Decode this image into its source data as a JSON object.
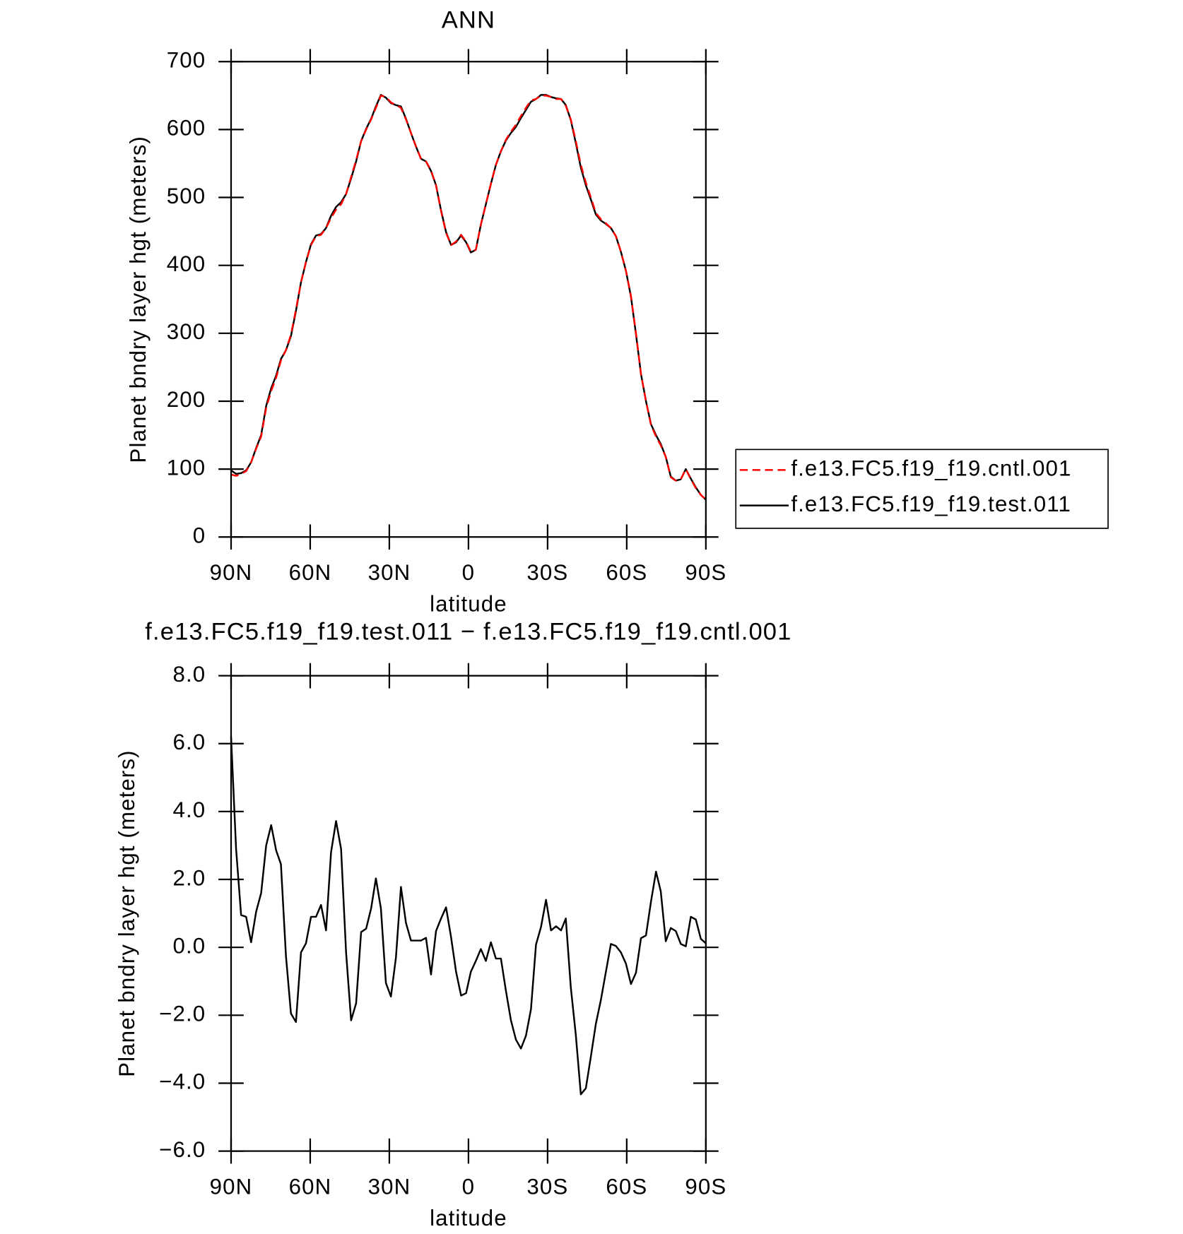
{
  "chart_data": [
    {
      "type": "line",
      "title": "ANN",
      "ylabel": "Planet bndry layer hgt (meters)",
      "xlabel": "latitude",
      "x": [
        90.0,
        88.1,
        86.2,
        84.3,
        82.4,
        80.5,
        78.6,
        76.7,
        74.8,
        72.9,
        71.1,
        69.2,
        67.3,
        65.4,
        63.5,
        61.6,
        59.7,
        57.8,
        55.9,
        54.0,
        52.1,
        50.2,
        48.3,
        46.4,
        44.5,
        42.6,
        40.7,
        38.8,
        36.9,
        35.1,
        33.2,
        31.3,
        29.4,
        27.5,
        25.6,
        23.7,
        21.8,
        19.9,
        18.0,
        16.1,
        14.2,
        12.3,
        10.4,
        8.5,
        6.6,
        4.7,
        2.8,
        0.9,
        -0.9,
        -2.8,
        -4.7,
        -6.6,
        -8.5,
        -10.4,
        -12.3,
        -14.2,
        -16.1,
        -18.0,
        -19.9,
        -21.8,
        -23.7,
        -25.6,
        -27.5,
        -29.4,
        -31.3,
        -33.2,
        -35.1,
        -36.9,
        -38.8,
        -40.7,
        -42.6,
        -44.5,
        -46.4,
        -48.3,
        -50.2,
        -52.1,
        -54.0,
        -55.9,
        -57.8,
        -59.7,
        -61.6,
        -63.5,
        -65.4,
        -67.3,
        -69.2,
        -71.1,
        -72.9,
        -74.8,
        -76.7,
        -78.6,
        -80.5,
        -82.4,
        -84.3,
        -86.2,
        -88.1,
        -90.0
      ],
      "series": [
        {
          "name": "f.e13.FC5.f19_f19.cntl.001",
          "color": "#ff0000",
          "dash": true,
          "values": [
            92,
            90,
            93,
            97,
            110,
            130,
            148,
            190,
            215,
            235,
            260,
            275,
            298,
            335,
            375,
            405,
            430,
            443,
            445,
            455,
            470,
            482,
            490,
            505,
            530,
            555,
            583,
            600,
            615,
            632,
            650,
            648,
            640,
            636,
            632,
            615,
            595,
            575,
            557,
            553,
            540,
            518,
            480,
            448,
            430,
            435,
            445,
            435,
            420,
            423,
            460,
            490,
            520,
            548,
            568,
            585,
            597,
            607,
            620,
            632,
            643,
            645,
            650,
            650,
            648,
            645,
            645,
            635,
            615,
            583,
            548,
            522,
            500,
            477,
            468,
            462,
            455,
            443,
            420,
            392,
            355,
            300,
            240,
            200,
            165,
            148,
            135,
            118,
            88,
            83,
            85,
            100,
            85,
            72,
            62,
            55
          ]
        },
        {
          "name": "f.e13.FC5.f19_f19.test.011",
          "color": "#000000",
          "dash": false,
          "values": [
            98,
            93,
            94,
            98,
            110,
            131,
            150,
            193,
            219,
            238,
            262,
            275,
            296,
            333,
            375,
            405,
            431,
            444,
            446,
            455,
            473,
            486,
            493,
            505,
            528,
            553,
            583,
            601,
            616,
            634,
            651,
            647,
            639,
            636,
            634,
            616,
            595,
            575,
            557,
            553,
            539,
            518,
            481,
            449,
            430,
            434,
            444,
            434,
            419,
            423,
            460,
            490,
            520,
            548,
            568,
            584,
            595,
            604,
            617,
            629,
            641,
            645,
            651,
            651,
            648,
            646,
            645,
            636,
            614,
            580,
            544,
            518,
            497,
            475,
            466,
            461,
            455,
            443,
            420,
            392,
            354,
            299,
            240,
            200,
            166,
            150,
            137,
            118,
            89,
            83,
            85,
            100,
            86,
            73,
            62,
            55
          ]
        }
      ],
      "xlim": [
        90,
        -90
      ],
      "xticks": [
        {
          "value": 90,
          "label": "90N"
        },
        {
          "value": 60,
          "label": "60N"
        },
        {
          "value": 30,
          "label": "30N"
        },
        0,
        {
          "value": -30,
          "label": "30S"
        },
        {
          "value": -60,
          "label": "60S"
        },
        {
          "value": -90,
          "label": "90S"
        }
      ],
      "ylim": [
        0,
        700
      ],
      "yticks": [
        0,
        100,
        200,
        300,
        400,
        500,
        600,
        700
      ],
      "legend": "right",
      "grid": false
    },
    {
      "type": "line",
      "title": "f.e13.FC5.f19_f19.test.011 − f.e13.FC5.f19_f19.cntl.001",
      "ylabel": "Planet bndry layer hgt (meters)",
      "xlabel": "latitude",
      "x": [
        90.0,
        88.1,
        86.2,
        84.3,
        82.4,
        80.5,
        78.6,
        76.7,
        74.8,
        72.9,
        71.1,
        69.2,
        67.3,
        65.4,
        63.5,
        61.6,
        59.7,
        57.8,
        55.9,
        54.0,
        52.1,
        50.2,
        48.3,
        46.4,
        44.5,
        42.6,
        40.7,
        38.8,
        36.9,
        35.1,
        33.2,
        31.3,
        29.4,
        27.5,
        25.6,
        23.7,
        21.8,
        19.9,
        18.0,
        16.1,
        14.2,
        12.3,
        10.4,
        8.5,
        6.6,
        4.7,
        2.8,
        0.9,
        -0.9,
        -2.8,
        -4.7,
        -6.6,
        -8.5,
        -10.4,
        -12.3,
        -14.2,
        -16.1,
        -18.0,
        -19.9,
        -21.8,
        -23.7,
        -25.6,
        -27.5,
        -29.4,
        -31.3,
        -33.2,
        -35.1,
        -36.9,
        -38.8,
        -40.7,
        -42.6,
        -44.5,
        -46.4,
        -48.3,
        -50.2,
        -52.1,
        -54.0,
        -55.9,
        -57.8,
        -59.7,
        -61.6,
        -63.5,
        -65.4,
        -67.3,
        -69.2,
        -71.1,
        -72.9,
        -74.8,
        -76.7,
        -78.6,
        -80.5,
        -82.4,
        -84.3,
        -86.2,
        -88.1,
        -90.0
      ],
      "series": [
        {
          "color": "#000000",
          "dash": false,
          "values": [
            6.2,
            2.9,
            0.95,
            0.9,
            0.15,
            1.05,
            1.6,
            3.0,
            3.6,
            2.85,
            2.45,
            -0.25,
            -1.95,
            -2.2,
            -0.15,
            0.12,
            0.9,
            0.9,
            1.25,
            0.5,
            2.8,
            3.72,
            2.9,
            -0.15,
            -2.15,
            -1.65,
            0.45,
            0.55,
            1.15,
            2.03,
            1.15,
            -1.05,
            -1.45,
            -0.3,
            1.78,
            0.72,
            0.2,
            0.2,
            0.2,
            0.28,
            -0.8,
            0.48,
            0.85,
            1.18,
            0.3,
            -0.72,
            -1.42,
            -1.35,
            -0.72,
            -0.4,
            -0.05,
            -0.4,
            0.15,
            -0.33,
            -0.33,
            -1.28,
            -2.15,
            -2.72,
            -2.98,
            -2.6,
            -1.82,
            0.08,
            0.6,
            1.4,
            0.5,
            0.62,
            0.5,
            0.85,
            -1.18,
            -2.58,
            -4.33,
            -4.15,
            -3.22,
            -2.25,
            -1.55,
            -0.72,
            0.1,
            0.04,
            -0.15,
            -0.48,
            -1.08,
            -0.75,
            0.27,
            0.35,
            1.35,
            2.23,
            1.65,
            0.18,
            0.57,
            0.48,
            0.1,
            0.03,
            0.9,
            0.82,
            0.25,
            0.12
          ]
        }
      ],
      "xlim": [
        90,
        -90
      ],
      "xticks": [
        {
          "value": 90,
          "label": "90N"
        },
        {
          "value": 60,
          "label": "60N"
        },
        {
          "value": 30,
          "label": "30N"
        },
        0,
        {
          "value": -30,
          "label": "30S"
        },
        {
          "value": -60,
          "label": "60S"
        },
        {
          "value": -90,
          "label": "90S"
        }
      ],
      "ylim": [
        -6,
        8
      ],
      "yticks": [
        {
          "value": -6,
          "label": "−6.0"
        },
        {
          "value": -4,
          "label": "−4.0"
        },
        {
          "value": -2,
          "label": "−2.0"
        },
        {
          "value": 0,
          "label": "0.0"
        },
        {
          "value": 2,
          "label": "2.0"
        },
        {
          "value": 4,
          "label": "4.0"
        },
        {
          "value": 6,
          "label": "6.0"
        },
        {
          "value": 8,
          "label": "8.0"
        }
      ],
      "grid": false
    }
  ]
}
